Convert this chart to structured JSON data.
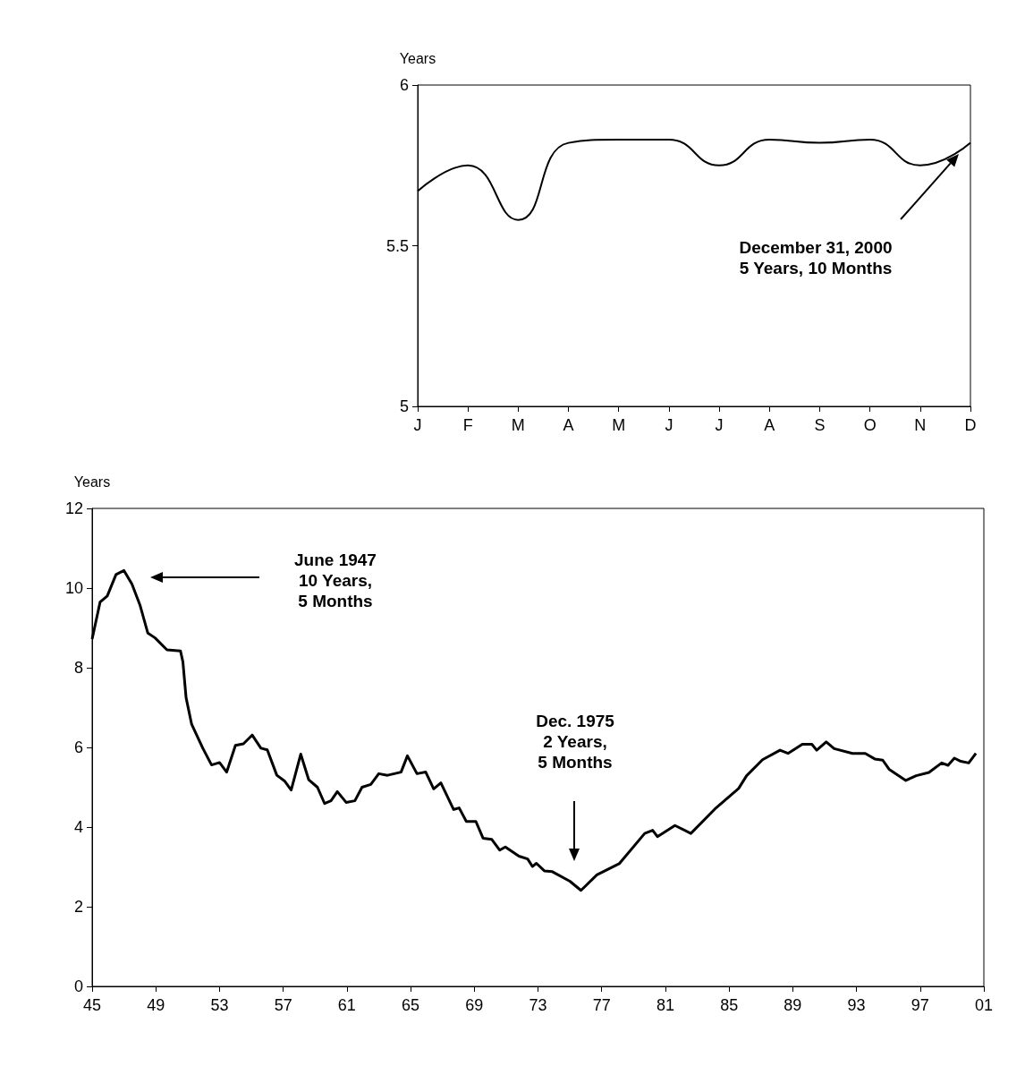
{
  "chart_data": [
    {
      "type": "line",
      "ylabel": "Years",
      "categories": [
        "J",
        "F",
        "M",
        "A",
        "M",
        "J",
        "J",
        "A",
        "S",
        "O",
        "N",
        "D"
      ],
      "series": [
        {
          "color": "#000000",
          "values": [
            5.67,
            5.75,
            5.58,
            5.82,
            5.83,
            5.83,
            5.75,
            5.83,
            5.82,
            5.83,
            5.75,
            5.82
          ]
        }
      ],
      "ylim": [
        5,
        6
      ],
      "yticks": [
        5,
        5.5,
        6
      ],
      "marker": "none",
      "annotations": [
        "December 31, 2000\n5 Years, 10 Months"
      ]
    },
    {
      "type": "line",
      "ylabel": "Years",
      "series": [
        {
          "color": "#000000",
          "x": [
            1945.0,
            1945.5,
            1945.95,
            1946.5,
            1947.0,
            1947.5,
            1948.0,
            1948.5,
            1948.95,
            1949.7,
            1950.55,
            1950.7,
            1950.9,
            1951.25,
            1951.95,
            1952.5,
            1953.0,
            1953.45,
            1954.0,
            1954.5,
            1955.05,
            1955.6,
            1956.0,
            1956.6,
            1957.1,
            1957.5,
            1958.1,
            1958.6,
            1959.15,
            1959.6,
            1960.0,
            1960.4,
            1960.95,
            1961.5,
            1961.95,
            1962.5,
            1963.0,
            1963.55,
            1964.4,
            1964.8,
            1965.4,
            1965.95,
            1966.45,
            1966.9,
            1967.7,
            1968.05,
            1968.5,
            1969.1,
            1969.55,
            1970.1,
            1970.6,
            1970.95,
            1971.8,
            1972.35,
            1972.65,
            1972.9,
            1973.4,
            1973.9,
            1975.0,
            1975.7,
            1976.7,
            1978.1,
            1979.7,
            1980.2,
            1980.5,
            1981.6,
            1982.6,
            1984.1,
            1985.6,
            1986.1,
            1987.1,
            1988.2,
            1988.7,
            1989.6,
            1990.2,
            1990.5,
            1991.1,
            1991.6,
            1992.75,
            1993.55,
            1994.15,
            1994.65,
            1995.05,
            1996.1,
            1996.75,
            1997.55,
            1998.35,
            1998.75,
            1999.15,
            1999.55,
            2000.05,
            2000.5
          ],
          "values": [
            8.72,
            9.65,
            9.8,
            10.34,
            10.44,
            10.1,
            9.58,
            8.87,
            8.75,
            8.45,
            8.42,
            8.15,
            7.25,
            6.58,
            5.98,
            5.56,
            5.62,
            5.38,
            6.05,
            6.09,
            6.31,
            5.98,
            5.94,
            5.3,
            5.15,
            4.93,
            5.83,
            5.19,
            5.0,
            4.59,
            4.66,
            4.89,
            4.62,
            4.66,
            5.0,
            5.07,
            5.34,
            5.3,
            5.38,
            5.79,
            5.34,
            5.38,
            4.96,
            5.11,
            4.44,
            4.48,
            4.14,
            4.14,
            3.72,
            3.69,
            3.42,
            3.5,
            3.27,
            3.2,
            3.01,
            3.09,
            2.9,
            2.88,
            2.64,
            2.41,
            2.8,
            3.08,
            3.84,
            3.92,
            3.76,
            4.04,
            3.84,
            4.45,
            4.97,
            5.29,
            5.69,
            5.93,
            5.85,
            6.08,
            6.08,
            5.93,
            6.14,
            5.97,
            5.85,
            5.85,
            5.71,
            5.68,
            5.45,
            5.17,
            5.29,
            5.37,
            5.61,
            5.55,
            5.73,
            5.65,
            5.61,
            5.85
          ]
        }
      ],
      "xlim": [
        1945,
        2001
      ],
      "xticks": [
        {
          "value": 1945,
          "label": "45"
        },
        {
          "value": 1949,
          "label": "49"
        },
        {
          "value": 1953,
          "label": "53"
        },
        {
          "value": 1957,
          "label": "57"
        },
        {
          "value": 1961,
          "label": "61"
        },
        {
          "value": 1965,
          "label": "65"
        },
        {
          "value": 1969,
          "label": "69"
        },
        {
          "value": 1973,
          "label": "73"
        },
        {
          "value": 1977,
          "label": "77"
        },
        {
          "value": 1981,
          "label": "81"
        },
        {
          "value": 1985,
          "label": "85"
        },
        {
          "value": 1989,
          "label": "89"
        },
        {
          "value": 1993,
          "label": "93"
        },
        {
          "value": 1997,
          "label": "97"
        },
        {
          "value": 2001,
          "label": "01"
        }
      ],
      "ylim": [
        0,
        12
      ],
      "yticks": [
        0,
        2,
        4,
        6,
        8,
        10,
        12
      ],
      "marker": "none",
      "annotations": [
        "June 1947\n10 Years,\n5 Months",
        "Dec. 1975\n2 Years,\n5 Months"
      ]
    }
  ]
}
